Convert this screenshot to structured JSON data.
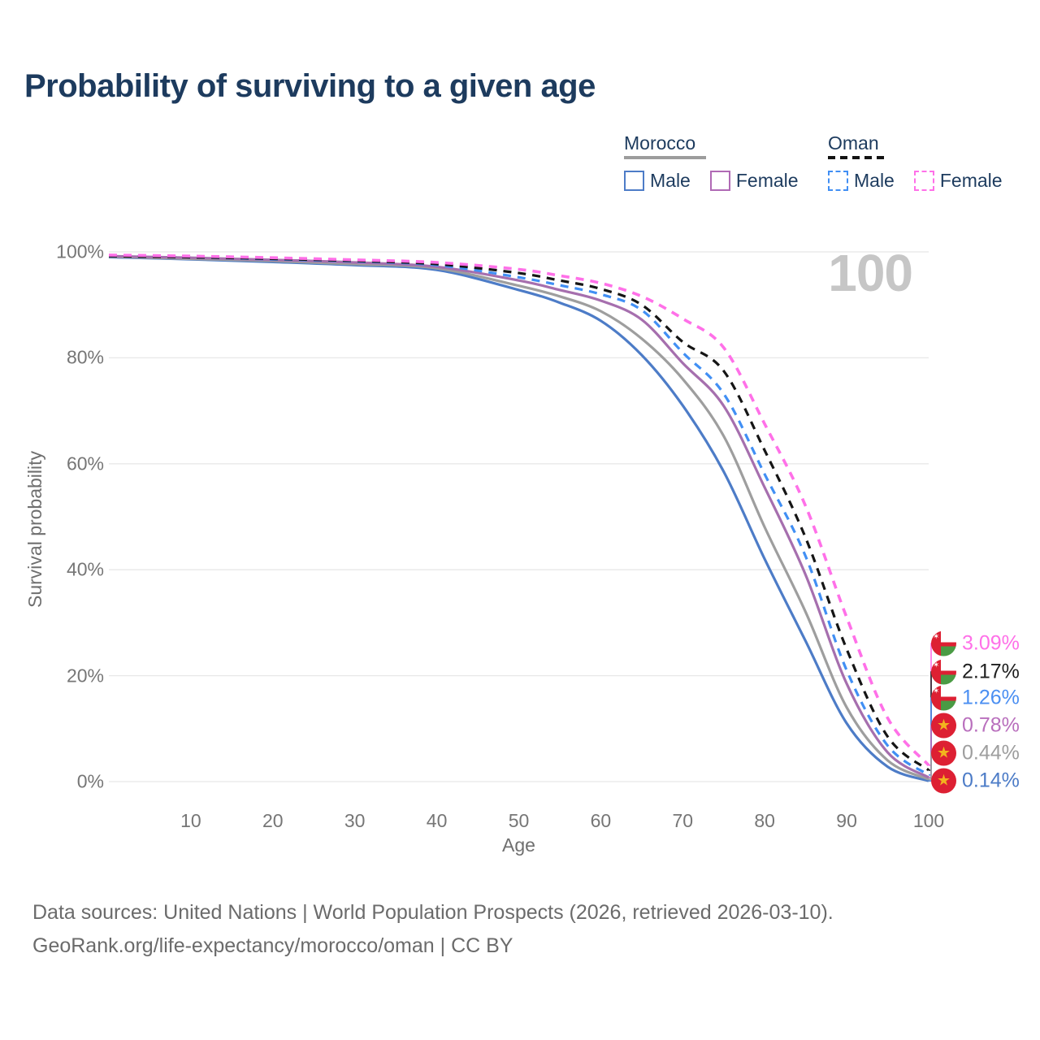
{
  "title": "Probability of surviving to a given age",
  "watermark": "100",
  "icons": {
    "morocco_flag_star": "★",
    "oman_flag_emblem": "✶"
  },
  "legend": {
    "groups": [
      {
        "label": "Morocco",
        "line_style": "solid",
        "rule_color": "#9c9c9c",
        "items": [
          {
            "label": "Male",
            "color": "#4d7cc7"
          },
          {
            "label": "Female",
            "color": "#b06ab5"
          }
        ]
      },
      {
        "label": "Oman",
        "line_style": "dashed",
        "rule_color": "#131313",
        "items": [
          {
            "label": "Male",
            "color": "#418ff4"
          },
          {
            "label": "Female",
            "color": "#ff70e8"
          }
        ]
      }
    ]
  },
  "chart_data": {
    "type": "line",
    "title": "Probability of surviving to a given age",
    "xlabel": "Age",
    "ylabel": "Survival probability",
    "xlim": [
      0,
      100
    ],
    "ylim": [
      0,
      100
    ],
    "grid": "horizontal-only",
    "legend_position": "top-right",
    "xticks": [
      {
        "label": "10",
        "value": 10
      },
      {
        "label": "20",
        "value": 20
      },
      {
        "label": "30",
        "value": 30
      },
      {
        "label": "40",
        "value": 40
      },
      {
        "label": "50",
        "value": 50
      },
      {
        "label": "60",
        "value": 60
      },
      {
        "label": "70",
        "value": 70
      },
      {
        "label": "80",
        "value": 80
      },
      {
        "label": "90",
        "value": 90
      },
      {
        "label": "100",
        "value": 100
      }
    ],
    "yticks": [
      {
        "label": "0%",
        "value": 0
      },
      {
        "label": "20%",
        "value": 20
      },
      {
        "label": "40%",
        "value": 40
      },
      {
        "label": "60%",
        "value": 60
      },
      {
        "label": "80%",
        "value": 80
      },
      {
        "label": "100%",
        "value": 100
      }
    ],
    "x": [
      0,
      10,
      20,
      30,
      40,
      50,
      55,
      60,
      65,
      70,
      75,
      80,
      85,
      90,
      95,
      100
    ],
    "series": [
      {
        "id": "morocco-male",
        "label": "Morocco Male",
        "country": "Morocco",
        "sex": "Male",
        "color": "#4d7cc7",
        "dash": "solid",
        "values": [
          99.0,
          98.6,
          98.1,
          97.5,
          96.6,
          92.8,
          90.4,
          87.0,
          80.5,
          71.0,
          58.5,
          42.0,
          26.5,
          11.0,
          2.8,
          0.14
        ]
      },
      {
        "id": "morocco-both",
        "label": "Morocco",
        "country": "Morocco",
        "sex": "All",
        "color": "#9e9e9e",
        "dash": "solid",
        "values": [
          99.1,
          98.7,
          98.3,
          97.7,
          96.9,
          93.6,
          91.6,
          88.8,
          83.6,
          76.0,
          65.2,
          48.0,
          32.0,
          14.0,
          4.0,
          0.44
        ]
      },
      {
        "id": "morocco-female",
        "label": "Morocco Female",
        "country": "Morocco",
        "sex": "Female",
        "color": "#a66fae",
        "dash": "solid",
        "values": [
          99.2,
          98.9,
          98.5,
          98.0,
          97.2,
          94.6,
          92.8,
          90.8,
          87.2,
          79.0,
          70.9,
          55.5,
          39.0,
          18.5,
          5.5,
          0.78
        ]
      },
      {
        "id": "oman-male",
        "label": "Oman Male",
        "country": "Oman",
        "sex": "Male",
        "color": "#418ff4",
        "dash": "dashed",
        "values": [
          99.2,
          99.0,
          98.6,
          98.2,
          97.5,
          95.2,
          93.7,
          92.0,
          89.0,
          81.0,
          73.2,
          58.0,
          42.5,
          21.0,
          6.8,
          1.26
        ]
      },
      {
        "id": "oman-both",
        "label": "Oman",
        "country": "Oman",
        "sex": "All",
        "color": "#151515",
        "dash": "dashed",
        "values": [
          99.2,
          99.0,
          98.7,
          98.3,
          97.7,
          96.0,
          94.6,
          93.0,
          90.0,
          83.0,
          77.5,
          62.5,
          46.0,
          25.0,
          8.5,
          2.17
        ]
      },
      {
        "id": "oman-female",
        "label": "Oman Female",
        "country": "Oman",
        "sex": "Female",
        "color": "#ff70e8",
        "dash": "dashed",
        "values": [
          99.4,
          99.2,
          98.9,
          98.5,
          98.0,
          96.7,
          95.5,
          94.1,
          91.6,
          87.4,
          81.9,
          67.5,
          52.0,
          31.0,
          12.0,
          3.09
        ]
      }
    ]
  },
  "end_labels": [
    {
      "value": "3.09%",
      "series": "oman-female",
      "color": "#ff70e8",
      "flag": "oman"
    },
    {
      "value": "2.17%",
      "series": "oman-both",
      "color": "#1f1f1f",
      "flag": "oman"
    },
    {
      "value": "1.26%",
      "series": "oman-male",
      "color": "#4b8ff2",
      "flag": "oman"
    },
    {
      "value": "0.78%",
      "series": "morocco-female",
      "color": "#b96fbd",
      "flag": "morocco"
    },
    {
      "value": "0.44%",
      "series": "morocco-both",
      "color": "#9e9e9e",
      "flag": "morocco"
    },
    {
      "value": "0.14%",
      "series": "morocco-male",
      "color": "#4d7cc7",
      "flag": "morocco"
    }
  ],
  "footer": {
    "line1": "Data sources: United Nations | World Population Prospects (2026, retrieved 2026-03-10).",
    "line2": "GeoRank.org/life-expectancy/morocco/oman | CC BY"
  }
}
